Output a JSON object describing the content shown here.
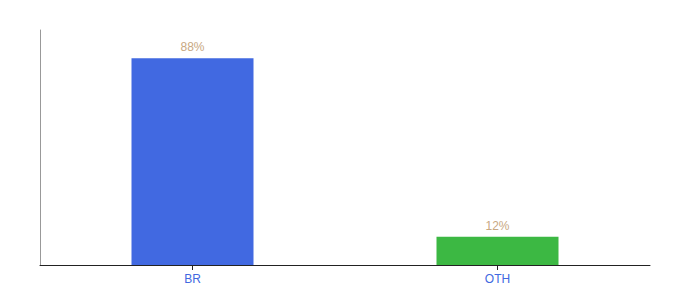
{
  "chart_data": {
    "type": "bar",
    "categories": [
      "BR",
      "OTH"
    ],
    "values": [
      88,
      12
    ],
    "value_labels": [
      "88%",
      "12%"
    ],
    "colors": [
      "#4169e1",
      "#3cb843"
    ],
    "ylim": [
      0,
      100
    ],
    "yticks": [],
    "grid": false,
    "data_labels": true,
    "tick_labels": "x"
  }
}
